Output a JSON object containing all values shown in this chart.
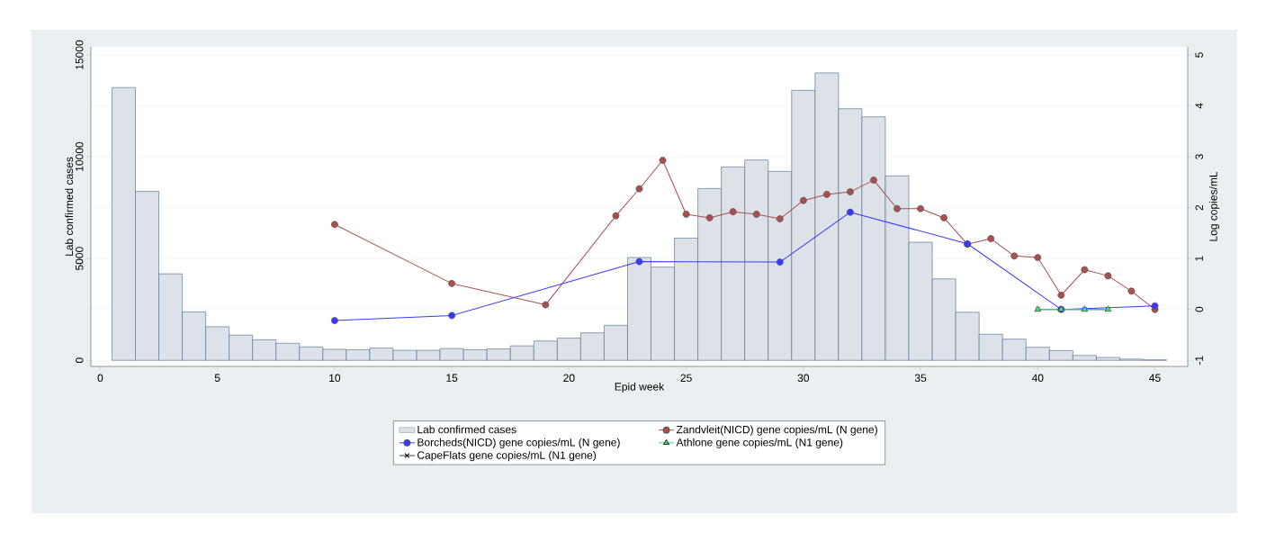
{
  "chart_data": {
    "type": "bar",
    "xlabel": "Epid week",
    "ylabel": "Lab confirmed cases",
    "y2label": "Log copies/mL",
    "x": [
      1,
      2,
      3,
      4,
      5,
      6,
      7,
      8,
      9,
      10,
      11,
      12,
      13,
      14,
      15,
      16,
      17,
      18,
      19,
      20,
      21,
      22,
      23,
      24,
      25,
      26,
      27,
      28,
      29,
      30,
      31,
      32,
      33,
      34,
      35,
      36,
      37,
      38,
      39,
      40,
      41,
      42,
      43,
      44,
      45
    ],
    "xlim": [
      -0.4,
      46.4
    ],
    "xticks": [
      0,
      5,
      10,
      15,
      20,
      25,
      30,
      35,
      40,
      45
    ],
    "ylim": [
      -300,
      15400
    ],
    "yticks": [
      0,
      5000,
      10000,
      15000
    ],
    "y2lim": [
      -1.12,
      5.16
    ],
    "y2ticks": [
      -1,
      0,
      1,
      2,
      3,
      4,
      5
    ],
    "grid": "y",
    "legend": "bottom",
    "series": [
      {
        "name": "Lab confirmed cases",
        "color": "#dde2e9",
        "values": [
          13400,
          8300,
          4250,
          2380,
          1650,
          1240,
          1010,
          840,
          660,
          540,
          520,
          600,
          490,
          490,
          580,
          520,
          560,
          710,
          950,
          1090,
          1350,
          1720,
          5050,
          4580,
          6000,
          8440,
          9500,
          9840,
          9280,
          13260,
          14120,
          12360,
          11960,
          9060,
          5800,
          4000,
          2360,
          1280,
          1040,
          640,
          480,
          240,
          140,
          60,
          20
        ]
      },
      {
        "name": "Zandvleit(NICD) gene copies/mL (N gene)",
        "type": "line",
        "axis": "y2",
        "color": "#a84f4f",
        "marker": "circle",
        "x": [
          10,
          15,
          19,
          22,
          23,
          24,
          25,
          26,
          27,
          28,
          29,
          30,
          31,
          32,
          33,
          34,
          35,
          36,
          37,
          38,
          39,
          40,
          41,
          42,
          43,
          44,
          45
        ],
        "values": [
          1.67,
          0.51,
          0.09,
          1.84,
          2.37,
          2.93,
          1.87,
          1.8,
          1.92,
          1.87,
          1.78,
          2.14,
          2.26,
          2.31,
          2.54,
          1.98,
          1.98,
          1.8,
          1.28,
          1.39,
          1.05,
          1.02,
          0.28,
          0.78,
          0.66,
          0.36,
          0.0
        ]
      },
      {
        "name": "Borcheds(NICD) gene copies/mL (N gene)",
        "type": "line",
        "axis": "y2",
        "color": "#3a3aff",
        "marker": "circle",
        "x": [
          10,
          15,
          23,
          29,
          32,
          37,
          41,
          45
        ],
        "values": [
          -0.22,
          -0.12,
          0.94,
          0.93,
          1.91,
          1.29,
          0.0,
          0.07
        ]
      },
      {
        "name": "Athlone gene copies/mL (N1 gene)",
        "type": "line",
        "axis": "y2",
        "color": "#3ee07a",
        "marker": "triangle",
        "x": [
          40,
          41,
          42,
          43
        ],
        "values": [
          0,
          0,
          0,
          0
        ]
      },
      {
        "name": "CapeFlats gene copies/mL (N1 gene)",
        "type": "line",
        "axis": "y2",
        "color": "#404040",
        "marker": "cross",
        "x": [
          40,
          41,
          42,
          43
        ],
        "values": [
          0,
          0,
          0,
          0
        ]
      }
    ]
  }
}
